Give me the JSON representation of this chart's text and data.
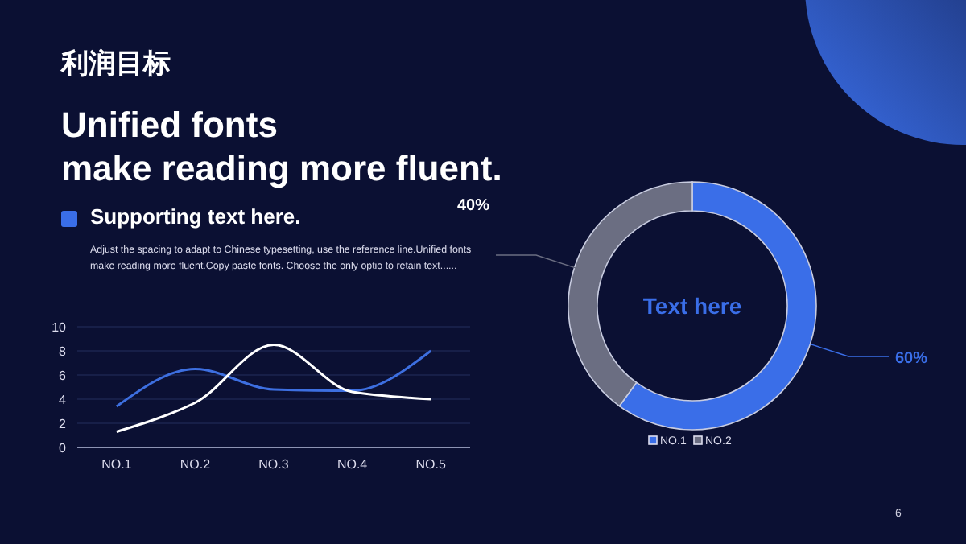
{
  "chart_data": [
    {
      "type": "other",
      "title": "利润目标",
      "subtitle": "Unified fonts\nmake reading more fluent.",
      "annotations": [
        "Supporting text here.",
        "Adjust the spacing to adapt to Chinese typesetting, use the reference line.Unified fonts make reading more fluent.Copy paste fonts. Choose the only optio to retain text......",
        "6"
      ]
    },
    {
      "type": "line",
      "categories": [
        "NO.1",
        "NO.2",
        "NO.3",
        "NO.4",
        "NO.5"
      ],
      "series": [
        {
          "color": "#3d6fe0",
          "values": [
            3.4,
            6.5,
            4.8,
            4.7,
            8.0
          ]
        },
        {
          "color": "#ffffff",
          "values": [
            1.3,
            3.7,
            8.5,
            4.6,
            4.0
          ]
        }
      ],
      "ylim": [
        0,
        10
      ],
      "yticks": [
        0,
        2,
        4,
        6,
        8,
        10
      ],
      "grid": "y"
    },
    {
      "type": "donut",
      "categories": [
        "NO.1",
        "NO.2"
      ],
      "values": [
        60,
        40
      ],
      "colors": [
        "#3a6ee8",
        "#6b6e82"
      ],
      "value_labels": [
        "60%",
        "40%"
      ],
      "legend": "bottom",
      "annotations": [
        "Text here"
      ]
    }
  ]
}
